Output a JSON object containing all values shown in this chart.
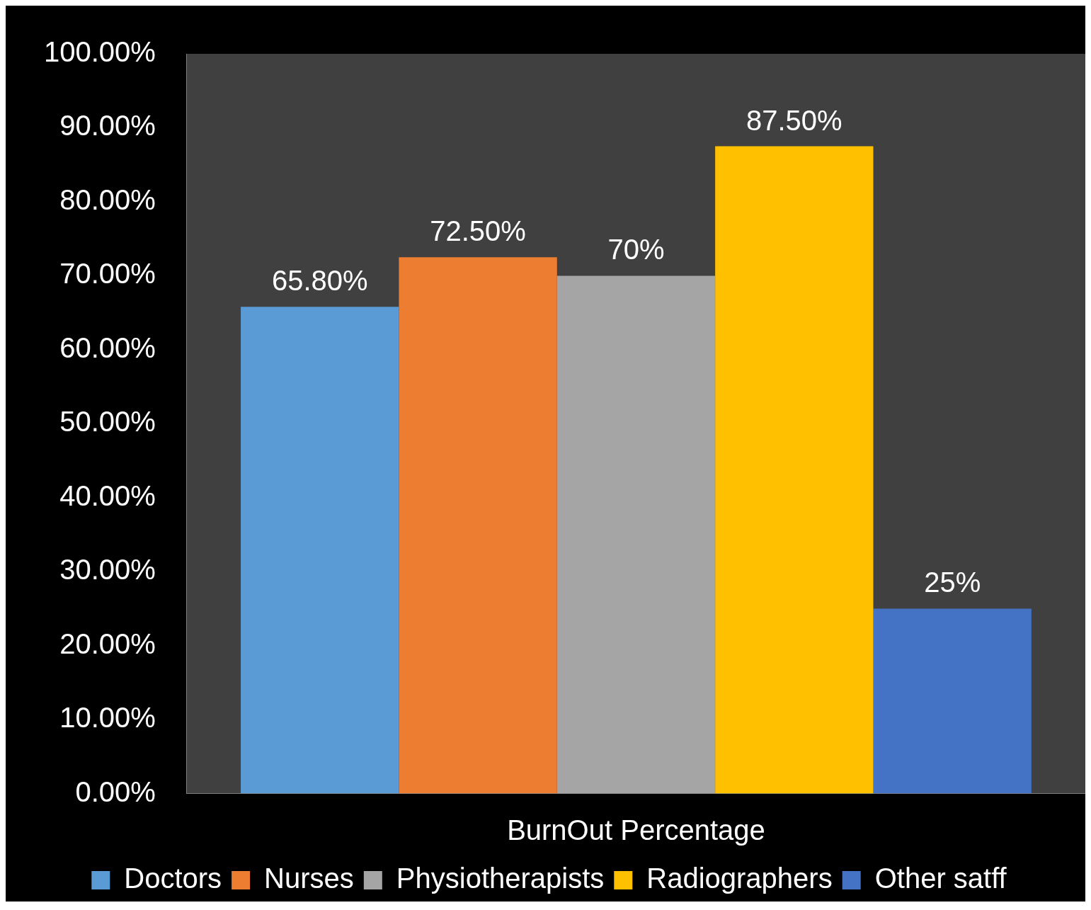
{
  "chart_data": {
    "type": "bar",
    "xlabel": "BurnOut Percentage",
    "categories": [
      null
    ],
    "series": [
      {
        "name": "Doctors",
        "color": "#5b9bd5",
        "values": [
          65.8
        ],
        "value_labels": [
          "65.80%"
        ]
      },
      {
        "name": "Nurses",
        "color": "#ed7d31",
        "values": [
          72.5
        ],
        "value_labels": [
          "72.50%"
        ]
      },
      {
        "name": "Physiotherapists",
        "color": "#a5a5a5",
        "values": [
          70
        ],
        "value_labels": [
          "70%"
        ]
      },
      {
        "name": "Radiographers",
        "color": "#ffc000",
        "values": [
          87.5
        ],
        "value_labels": [
          "87.50%"
        ]
      },
      {
        "name": "Other satff",
        "color": "#4472c4",
        "values": [
          25
        ],
        "value_labels": [
          "25%"
        ]
      }
    ],
    "ylim": [
      0,
      100
    ],
    "yticks": [
      {
        "value": 0,
        "label": "0.00%"
      },
      {
        "value": 10,
        "label": "10.00%"
      },
      {
        "value": 20,
        "label": "20.00%"
      },
      {
        "value": 30,
        "label": "30.00%"
      },
      {
        "value": 40,
        "label": "40.00%"
      },
      {
        "value": 50,
        "label": "50.00%"
      },
      {
        "value": 60,
        "label": "60.00%"
      },
      {
        "value": 70,
        "label": "70.00%"
      },
      {
        "value": 80,
        "label": "80.00%"
      },
      {
        "value": 90,
        "label": "90.00%"
      },
      {
        "value": 100,
        "label": "100.00%"
      }
    ],
    "grid": false,
    "legend": "bottom"
  }
}
